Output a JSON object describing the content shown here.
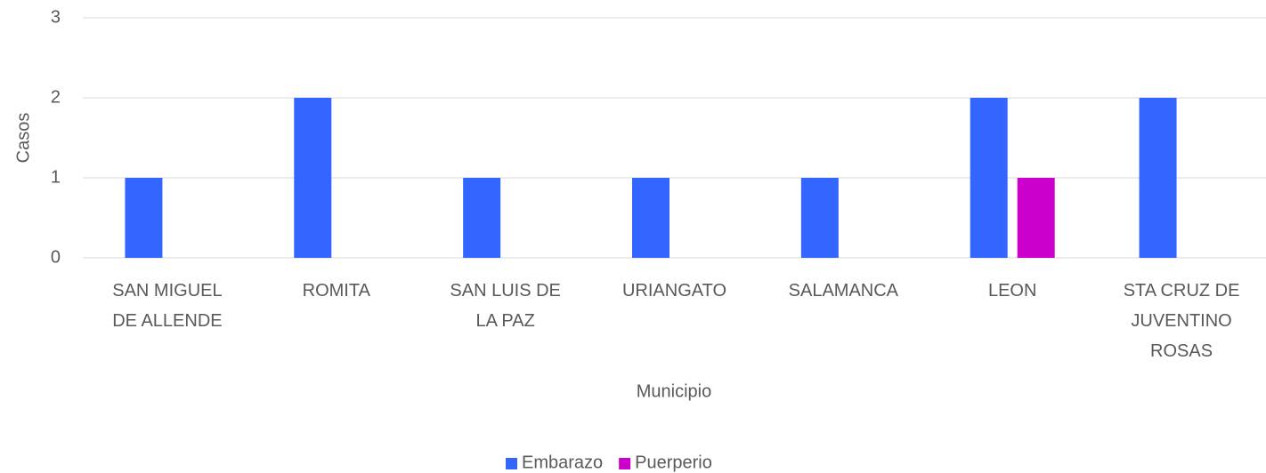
{
  "chart_data": {
    "type": "bar",
    "x_label": "Municipio",
    "y_label": "Casos",
    "categories": [
      "SAN MIGUEL DE ALLENDE",
      "ROMITA",
      "SAN LUIS DE LA PAZ",
      "URIANGATO",
      "SALAMANCA",
      "LEON",
      "STA CRUZ DE JUVENTINO ROSAS"
    ],
    "series": [
      {
        "name": "Embarazo",
        "color": "#3366ff",
        "values": [
          1,
          2,
          1,
          1,
          1,
          2,
          2
        ]
      },
      {
        "name": "Puerperio",
        "color": "#cc00cc",
        "values": [
          0,
          0,
          0,
          0,
          0,
          1,
          0
        ]
      }
    ],
    "ylim": [
      0,
      3
    ],
    "yticks": [
      0,
      1,
      2,
      3
    ],
    "grid": true,
    "legend": "bottom"
  }
}
